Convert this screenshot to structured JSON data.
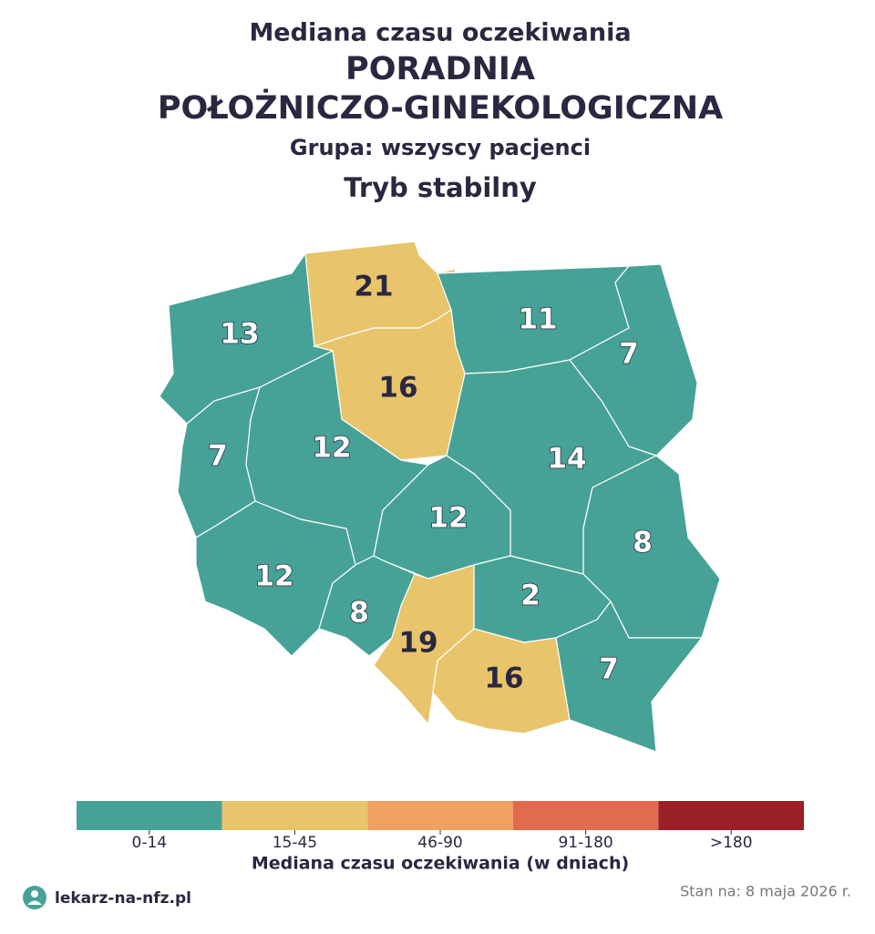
{
  "header": {
    "line1": "Mediana czasu oczekiwania",
    "line2": "PORADNIA",
    "line3": "POŁOŻNICZO-GINEKOLOGICZNA",
    "line4": "Grupa: wszyscy pacjenci",
    "line5": "Tryb stabilny"
  },
  "map": {
    "regions": [
      {
        "value": 13,
        "color": "#46a296"
      },
      {
        "value": 21,
        "color": "#e8c46b"
      },
      {
        "value": 11,
        "color": "#46a296"
      },
      {
        "value": 7,
        "color": "#46a296"
      },
      {
        "value": 16,
        "color": "#e8c46b"
      },
      {
        "value": 7,
        "color": "#46a296"
      },
      {
        "value": 12,
        "color": "#46a296"
      },
      {
        "value": 14,
        "color": "#46a296"
      },
      {
        "value": 12,
        "color": "#46a296"
      },
      {
        "value": 12,
        "color": "#46a296"
      },
      {
        "value": 8,
        "color": "#46a296"
      },
      {
        "value": 8,
        "color": "#46a296"
      },
      {
        "value": 2,
        "color": "#46a296"
      },
      {
        "value": 19,
        "color": "#e8c46b"
      },
      {
        "value": 16,
        "color": "#e8c46b"
      },
      {
        "value": 7,
        "color": "#46a296"
      }
    ]
  },
  "legend": {
    "title": "Mediana czasu oczekiwania (w dniach)",
    "bins": [
      {
        "label": "0-14",
        "color": "#46a296"
      },
      {
        "label": "15-45",
        "color": "#e8c46b"
      },
      {
        "label": "46-90",
        "color": "#f0a060"
      },
      {
        "label": "91-180",
        "color": "#e06b4f"
      },
      {
        "label": ">180",
        "color": "#9b1f27"
      }
    ]
  },
  "footer": {
    "brand": "lekarz-na-nfz.pl",
    "date": "Stan na: 8 maja 2026 r."
  }
}
